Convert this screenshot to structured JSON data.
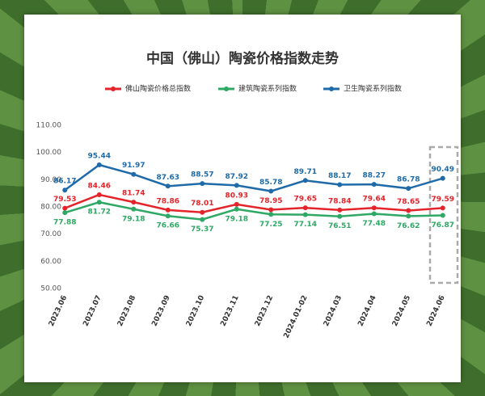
{
  "chart_data": {
    "type": "line",
    "title": "中国（佛山）陶瓷价格指数走势",
    "categories": [
      "2023.06",
      "2023.07",
      "2023.08",
      "2023.09",
      "2023.10",
      "2023.11",
      "2023.12",
      "2024.01-02",
      "2024.03",
      "2024.04",
      "2024.05",
      "2024.06"
    ],
    "series": [
      {
        "name": "佛山陶瓷价格总指数",
        "color": "#e3242b",
        "values": [
          79.53,
          84.46,
          81.74,
          78.86,
          78.01,
          80.93,
          78.95,
          79.65,
          78.84,
          79.64,
          78.65,
          79.59
        ]
      },
      {
        "name": "建筑陶瓷系列指数",
        "color": "#2ea864",
        "values": [
          77.88,
          81.72,
          79.18,
          76.66,
          75.37,
          79.18,
          77.25,
          77.14,
          76.51,
          77.48,
          76.62,
          76.87
        ]
      },
      {
        "name": "卫生陶瓷系列指数",
        "color": "#1f6aa8",
        "values": [
          86.17,
          95.44,
          91.97,
          87.63,
          88.57,
          87.92,
          85.78,
          89.71,
          88.17,
          88.27,
          86.78,
          90.49
        ]
      }
    ],
    "ylim": [
      50,
      110
    ],
    "yticks": [
      {
        "value": 50,
        "label": "50.00"
      },
      {
        "value": 60,
        "label": "60.00"
      },
      {
        "value": 70,
        "label": "70.00"
      },
      {
        "value": 80,
        "label": "80.00"
      },
      {
        "value": 90,
        "label": "90.00"
      },
      {
        "value": 100,
        "label": "100.00"
      },
      {
        "value": 110,
        "label": "110.00"
      }
    ],
    "grid": false
  }
}
